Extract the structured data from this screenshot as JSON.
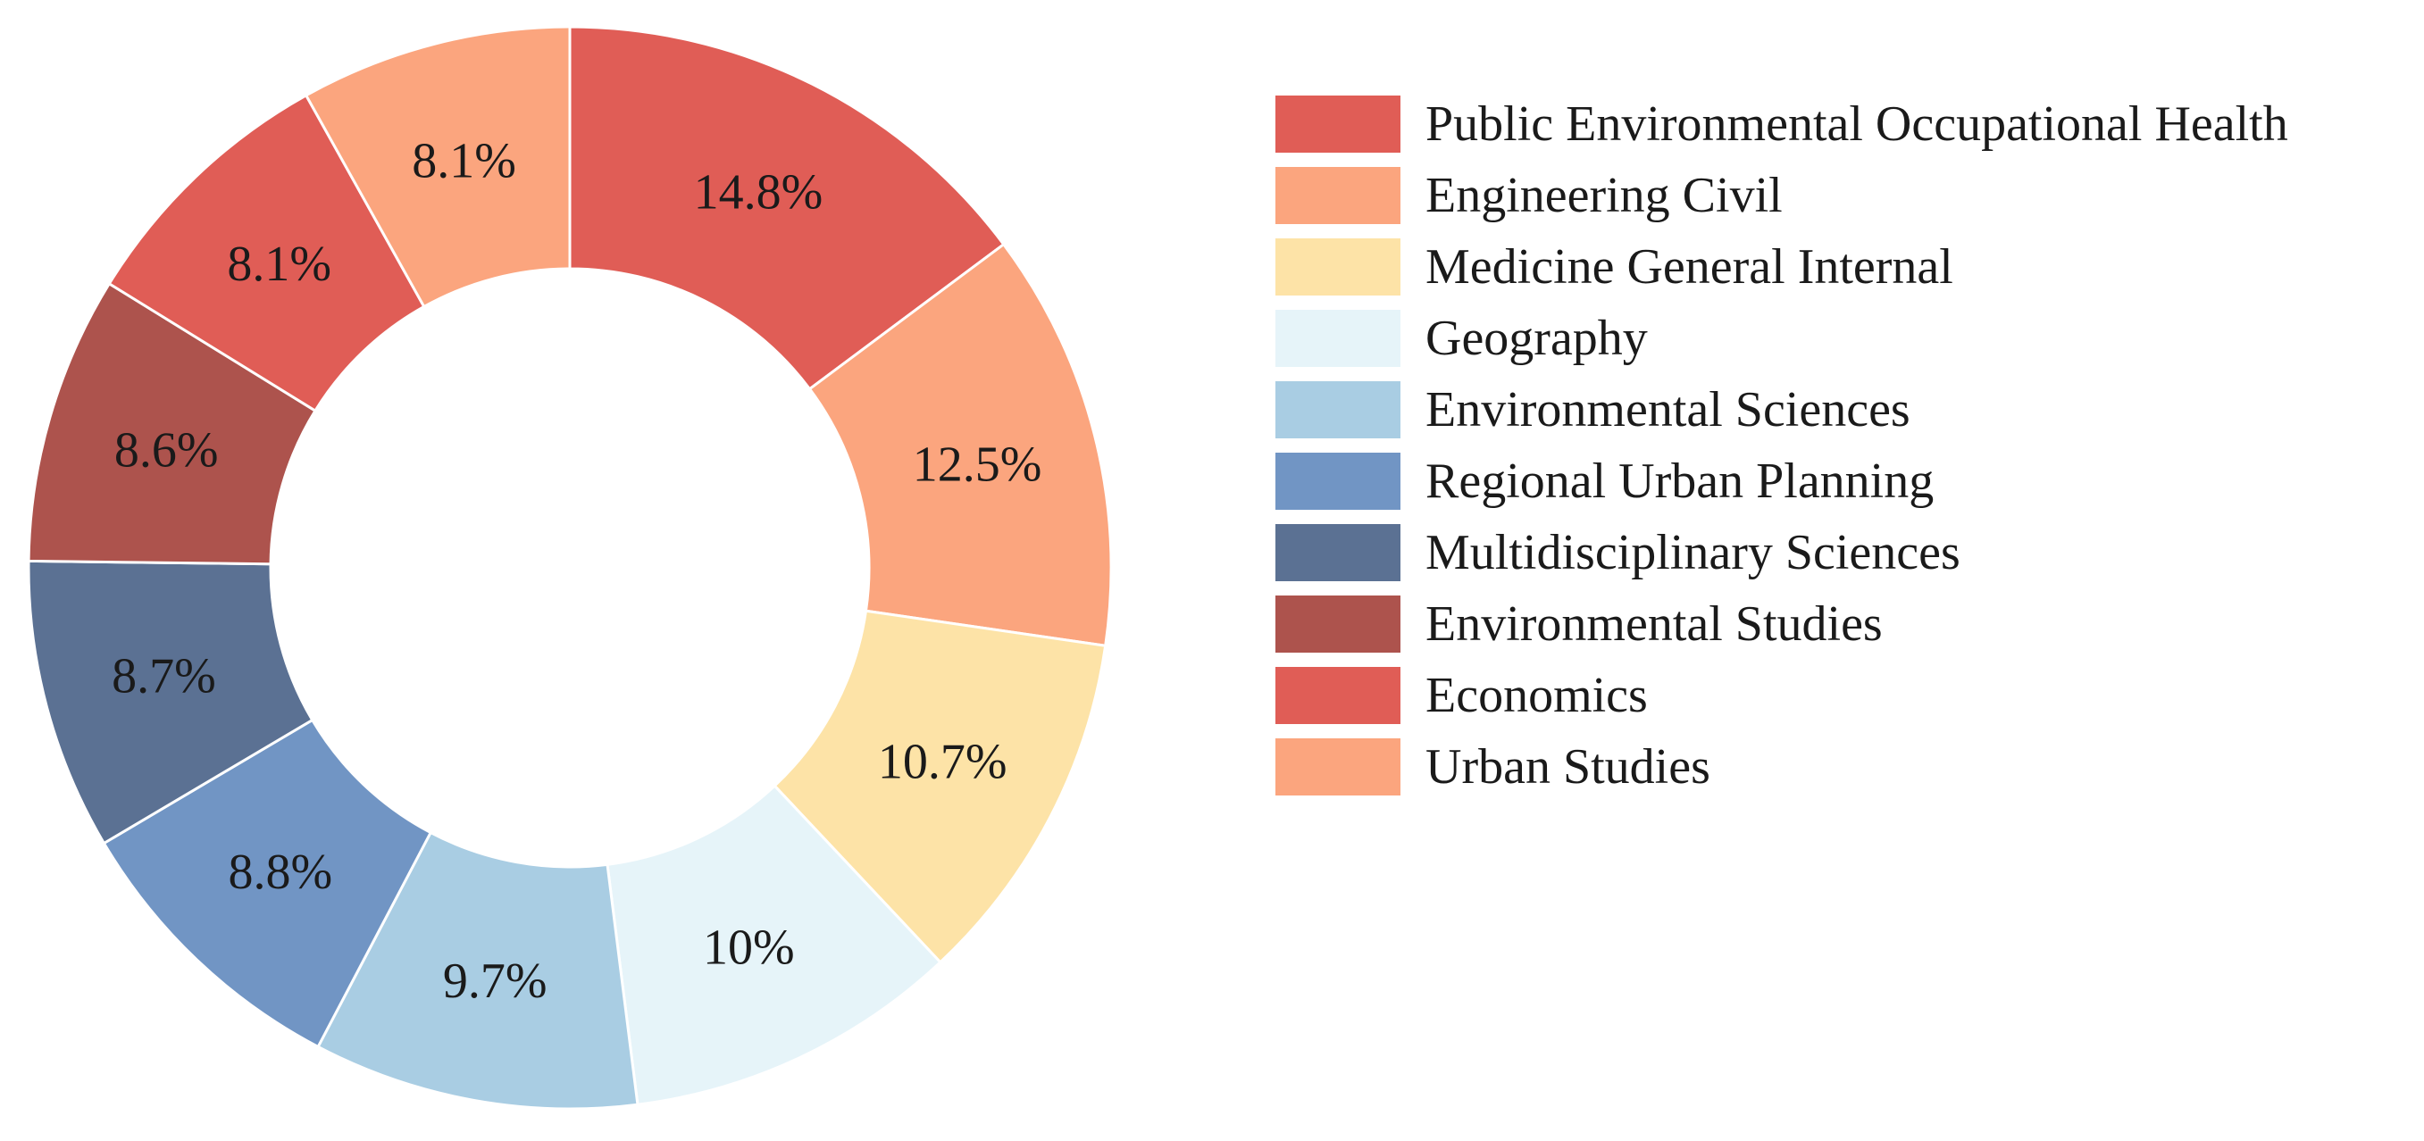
{
  "chart_data": {
    "type": "pie",
    "variant": "donut",
    "title": "",
    "categories": [
      "Public Environmental Occupational Health",
      "Engineering Civil",
      "Medicine General Internal",
      "Geography",
      "Environmental Sciences",
      "Regional Urban Planning",
      "Multidisciplinary Sciences",
      "Environmental Studies",
      "Economics",
      "Urban Studies"
    ],
    "values": [
      14.8,
      12.5,
      10.7,
      10,
      9.7,
      8.8,
      8.7,
      8.6,
      8.1,
      8.1
    ],
    "labels": [
      "14.8%",
      "12.5%",
      "10.7%",
      "10%",
      "9.7%",
      "8.8%",
      "8.7%",
      "8.6%",
      "8.1%",
      "8.1%"
    ],
    "colors": [
      "#e05d56",
      "#fba57e",
      "#fde3a7",
      "#e6f4f9",
      "#a9cde3",
      "#7195c4",
      "#5b7193",
      "#ad534d",
      "#e05d56",
      "#fba57e"
    ],
    "legend_position": "right"
  }
}
